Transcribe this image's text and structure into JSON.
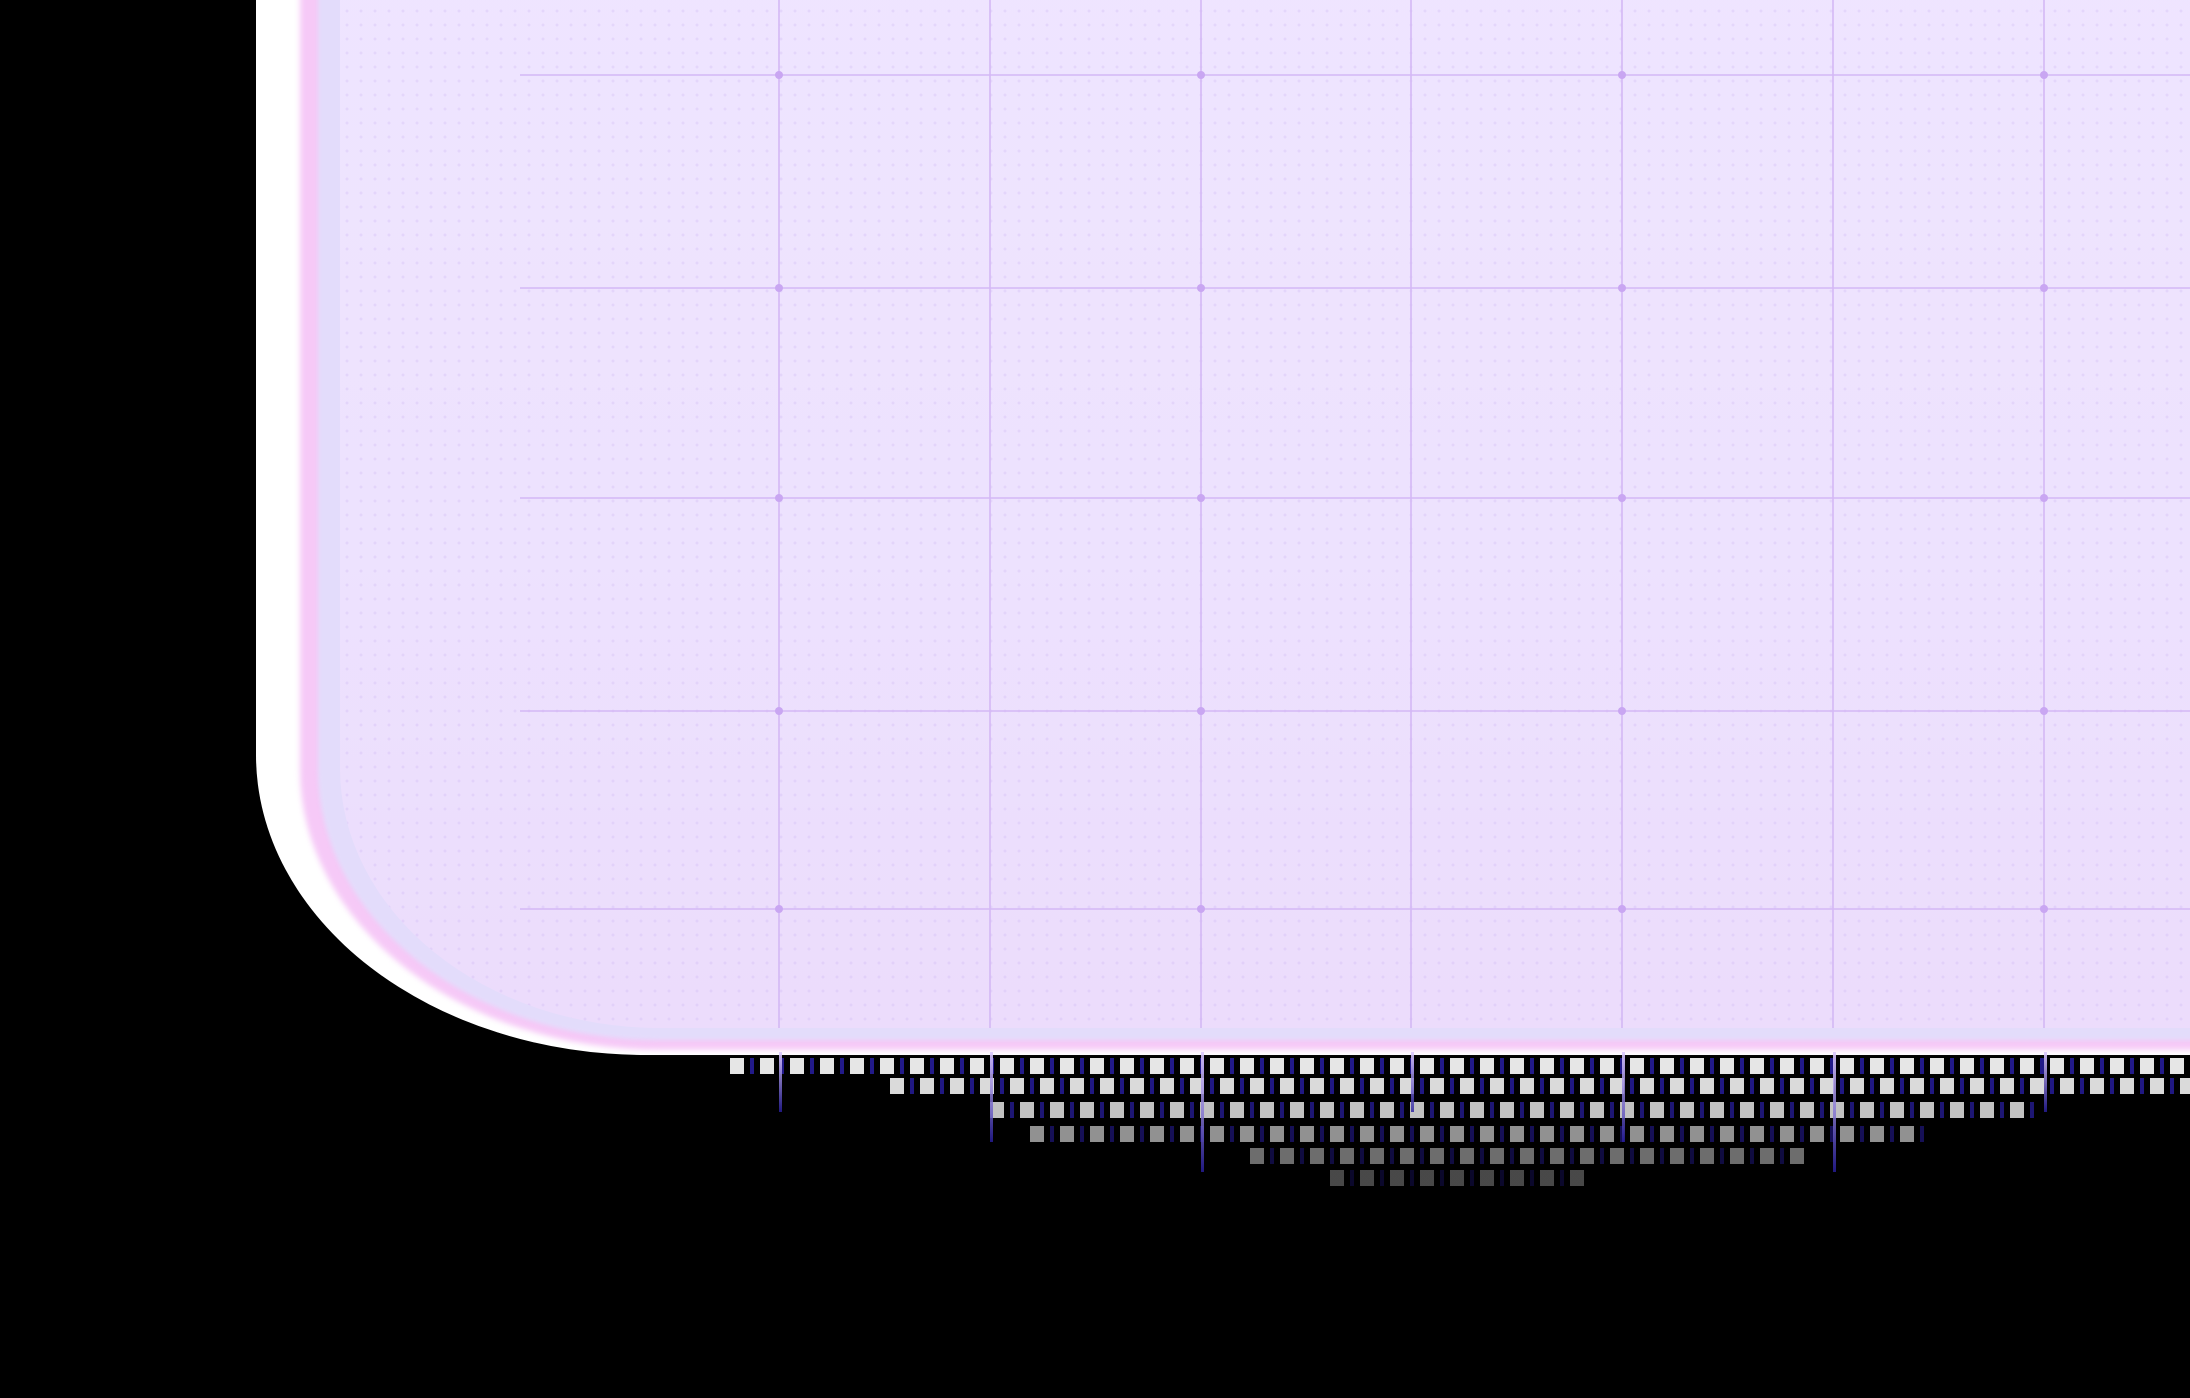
{
  "canvas": {
    "background_color": "#000000"
  },
  "panel": {
    "fill_color": "#ede2fe",
    "halo_color": "#ffffff",
    "fringe_pink": "#f6c9f7",
    "fringe_blue": "#e3dcfb",
    "grid_line_color": "#d4b8f5",
    "grid_node_color": "#c9a6f2",
    "dot_color": "#c4aaf0"
  },
  "glitch": {
    "primary_color": "#ffffff",
    "secondary_color": "#281ea0"
  }
}
